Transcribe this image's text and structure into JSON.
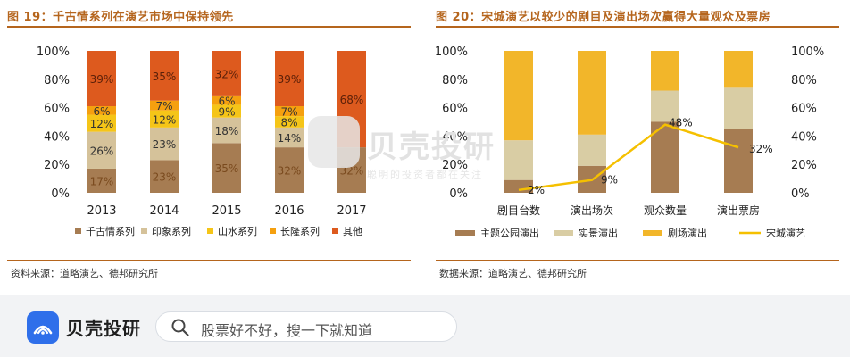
{
  "left": {
    "title": "图 19：千古情系列在演艺市场中保持领先",
    "source": "资料来源：道略演艺、德邦研究所"
  },
  "right": {
    "title": "图 20：宋城演艺以较少的剧目及演出场次赢得大量观众及票房",
    "source": "数据来源：道略演艺、德邦研究所"
  },
  "watermark": {
    "text": "贝壳投研",
    "subtext": "聪明的投资者都在关注"
  },
  "footer": {
    "app_name": "贝壳投研",
    "search_placeholder": "股票好不好，搜一下就知道"
  },
  "colors": {
    "accent": "#b5651d",
    "qiangu": "#a67c52",
    "yinxiang": "#d5c29a",
    "shanshui": "#f5c518",
    "changlong": "#f5a00f",
    "other": "#dd5a1e",
    "theme_park": "#a67c52",
    "real_scene": "#d9cda4",
    "theater": "#f2b62a",
    "songcheng": "#f5c000",
    "brand": "#2f6fea"
  },
  "chart_data": [
    {
      "type": "bar",
      "stacked": true,
      "categories": [
        "2013",
        "2014",
        "2015",
        "2016",
        "2017"
      ],
      "series": [
        {
          "name": "千古情系列",
          "values": [
            17,
            23,
            35,
            32,
            32
          ]
        },
        {
          "name": "印象系列",
          "values": [
            26,
            23,
            18,
            14,
            0
          ]
        },
        {
          "name": "山水系列",
          "values": [
            12,
            12,
            9,
            8,
            0
          ]
        },
        {
          "name": "长隆系列",
          "values": [
            6,
            7,
            6,
            7,
            0
          ]
        },
        {
          "name": "其他",
          "values": [
            39,
            35,
            32,
            39,
            68
          ]
        }
      ],
      "ylim": [
        0,
        100
      ],
      "yticks": [
        "0%",
        "20%",
        "40%",
        "60%",
        "80%",
        "100%"
      ],
      "legend": "bottom",
      "grid": false
    },
    {
      "type": "bar",
      "stacked": true,
      "categories": [
        "剧目台数",
        "演出场次",
        "观众数量",
        "演出票房"
      ],
      "series": [
        {
          "name": "主题公园演出",
          "values": [
            9,
            19,
            50,
            45
          ]
        },
        {
          "name": "实景演出",
          "values": [
            28,
            22,
            22,
            29
          ]
        },
        {
          "name": "剧场演出",
          "values": [
            63,
            59,
            28,
            26
          ]
        }
      ],
      "line": {
        "name": "宋城演艺",
        "values": [
          2,
          9,
          48,
          32
        ],
        "labels": [
          "2%",
          "9%",
          "48%",
          "32%"
        ]
      },
      "ylim": [
        0,
        100
      ],
      "yticks": [
        "0%",
        "20%",
        "40%",
        "60%",
        "80%",
        "100%"
      ],
      "y2ticks": [
        "0%",
        "20%",
        "40%",
        "60%",
        "80%",
        "100%"
      ],
      "legend": "bottom",
      "grid": false
    }
  ]
}
